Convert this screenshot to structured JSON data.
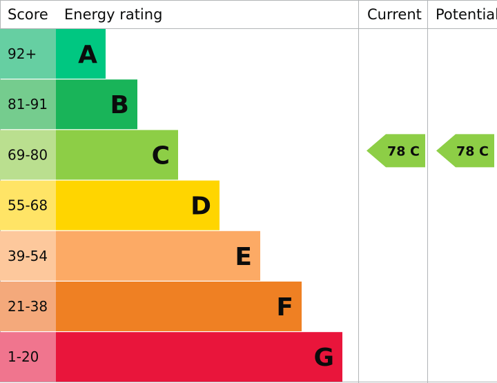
{
  "header": {
    "score": "Score",
    "energy_rating": "Energy rating",
    "current": "Current",
    "potential": "Potential"
  },
  "chart_data": {
    "type": "bar",
    "categories": [
      "A",
      "B",
      "C",
      "D",
      "E",
      "F",
      "G"
    ],
    "score_ranges": [
      "92+",
      "81-91",
      "69-80",
      "55-68",
      "39-54",
      "21-38",
      "1-20"
    ],
    "bands": [
      {
        "letter": "A",
        "range": "92+",
        "color": "#00c781",
        "score_bg": "#66cfa2",
        "text_color": "#0b0c0c"
      },
      {
        "letter": "B",
        "range": "81-91",
        "color": "#19b459",
        "score_bg": "#75cc8e",
        "text_color": "#0b0c0c"
      },
      {
        "letter": "C",
        "range": "69-80",
        "color": "#8dce46",
        "score_bg": "#badf8f",
        "text_color": "#0b0c0c"
      },
      {
        "letter": "D",
        "range": "55-68",
        "color": "#ffd500",
        "score_bg": "#ffe466",
        "text_color": "#0b0c0c"
      },
      {
        "letter": "E",
        "range": "39-54",
        "color": "#fcaa65",
        "score_bg": "#fdc89c",
        "text_color": "#0b0c0c"
      },
      {
        "letter": "F",
        "range": "21-38",
        "color": "#ef8023",
        "score_bg": "#f4a97b",
        "text_color": "#0b0c0c"
      },
      {
        "letter": "G",
        "range": "1-20",
        "color": "#e9153b",
        "score_bg": "#f0758e",
        "text_color": "#0b0c0c"
      }
    ],
    "current": {
      "value": 78,
      "band": "C",
      "label": "78 C",
      "color": "#8dce46"
    },
    "potential": {
      "value": 78,
      "band": "C",
      "label": "78 C",
      "color": "#8dce46"
    }
  }
}
